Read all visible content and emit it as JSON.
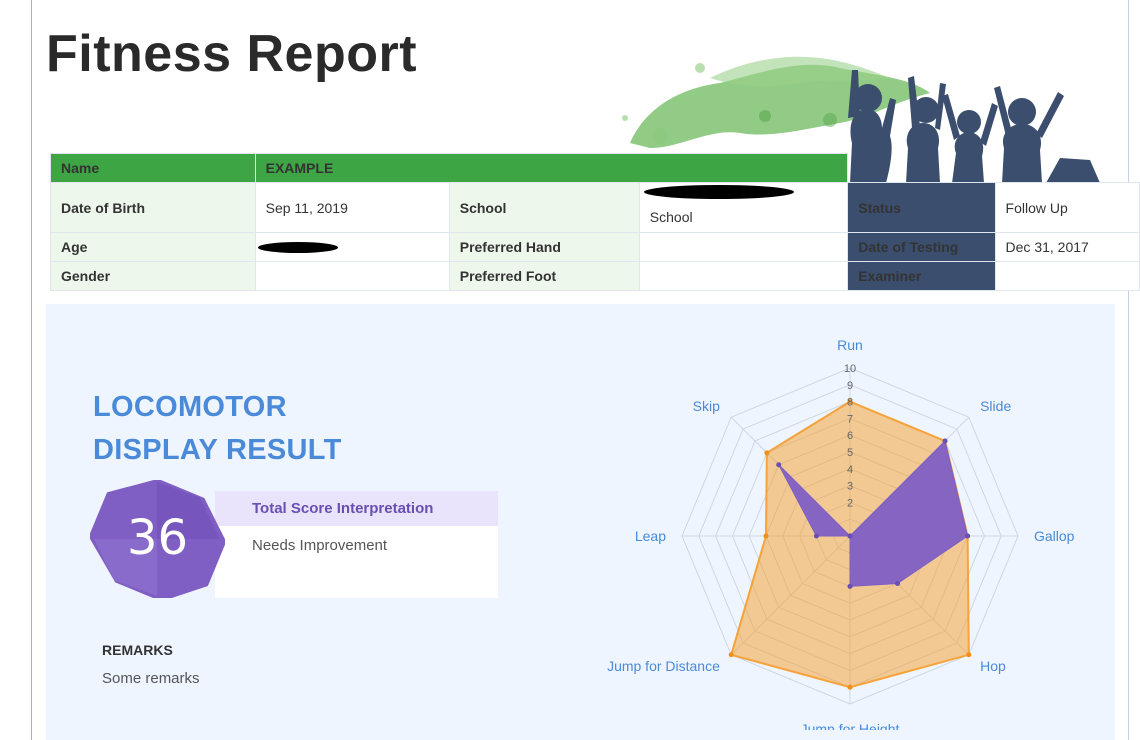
{
  "report": {
    "title": "Fitness Report"
  },
  "student": {
    "name_label": "Name",
    "name_value": "EXAMPLE",
    "dob_label": "Date of Birth",
    "dob_value": "Sep 11, 2019",
    "age_label": "Age",
    "age_value": "",
    "gender_label": "Gender",
    "gender_value": "",
    "school_label": "School",
    "school_value": "School",
    "hand_label": "Preferred Hand",
    "hand_value": "",
    "foot_label": "Preferred Foot",
    "foot_value": "",
    "status_label": "Status",
    "status_value": "Follow Up",
    "testing_label": "Date of Testing",
    "testing_value": "Dec 31, 2017",
    "examiner_label": "Examiner",
    "examiner_value": ""
  },
  "result": {
    "heading_line1": "LOCOMOTOR",
    "heading_line2": "DISPLAY RESULT",
    "score": "36",
    "interp_title": "Total Score Interpretation",
    "interp_value": "Needs Improvement",
    "remarks_title": "REMARKS",
    "remarks_text": "Some remarks"
  },
  "colors": {
    "green": "#3da543",
    "navy": "#3b4e6e",
    "purple": "#7f5fc4",
    "orange": "#f5a33a",
    "blue_text": "#4a8ad9"
  },
  "chart_data": {
    "type": "radar",
    "categories": [
      "Run",
      "Slide",
      "Gallop",
      "Hop",
      "Jump for Height",
      "Jump for Distance",
      "Leap",
      "Skip"
    ],
    "rlim": [
      0,
      10
    ],
    "ticks": [
      "2",
      "3",
      "4",
      "5",
      "6",
      "7",
      "8",
      "9",
      "10"
    ],
    "series": [
      {
        "values": [
          8,
          8,
          7,
          10,
          9,
          10,
          5,
          7
        ],
        "color": "#f5a33a"
      },
      {
        "values": [
          0,
          8,
          7,
          4,
          3,
          0,
          2,
          6
        ],
        "color": "#7f5fc4"
      }
    ]
  }
}
